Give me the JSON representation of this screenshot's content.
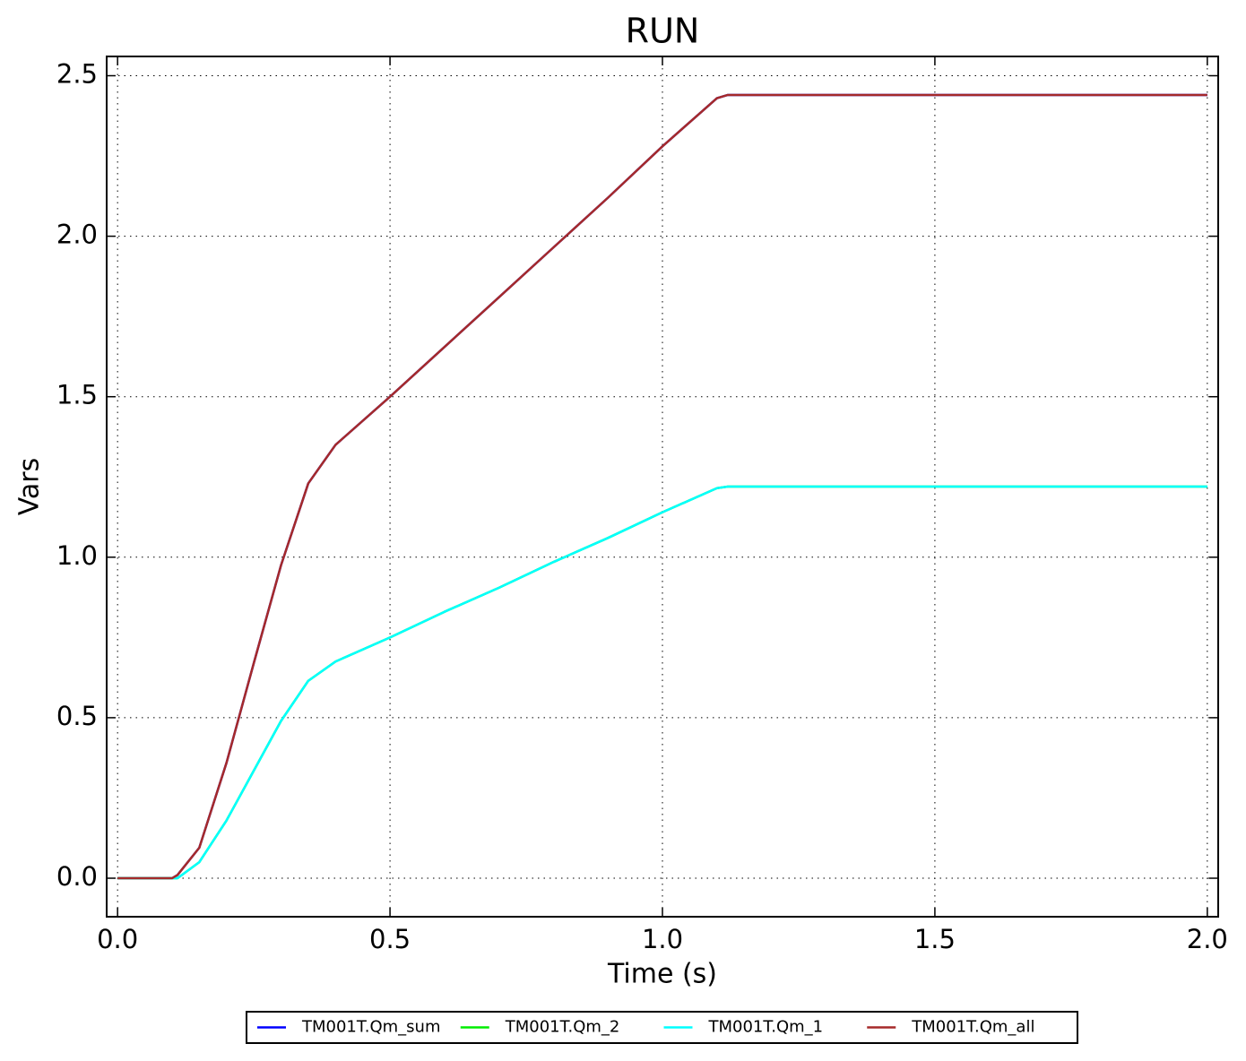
{
  "chart_data": {
    "type": "line",
    "title": "RUN",
    "xlabel": "Time (s)",
    "ylabel": "Vars",
    "x": [
      0,
      0.1,
      0.11,
      0.15,
      0.2,
      0.25,
      0.3,
      0.35,
      0.4,
      0.5,
      0.6,
      0.7,
      0.8,
      0.9,
      1.0,
      1.1,
      1.12,
      1.2,
      1.5,
      2.0
    ],
    "series": [
      {
        "name": "TM001T.Qm_sum",
        "color": "#0000ff",
        "values": [
          0,
          0,
          0.01,
          0.095,
          0.36,
          0.67,
          0.975,
          1.23,
          1.35,
          1.5,
          1.655,
          1.81,
          1.965,
          2.12,
          2.28,
          2.43,
          2.44,
          2.44,
          2.44,
          2.44
        ]
      },
      {
        "name": "TM001T.Qm_2",
        "color": "#00ee00",
        "values": [
          0,
          0,
          0.0,
          0.05,
          0.18,
          0.335,
          0.49,
          0.615,
          0.675,
          0.75,
          0.83,
          0.905,
          0.985,
          1.06,
          1.14,
          1.215,
          1.22,
          1.22,
          1.22,
          1.22
        ]
      },
      {
        "name": "TM001T.Qm_1",
        "color": "#00ffff",
        "values": [
          0,
          0,
          0.0,
          0.05,
          0.18,
          0.335,
          0.49,
          0.615,
          0.675,
          0.75,
          0.83,
          0.905,
          0.985,
          1.06,
          1.14,
          1.215,
          1.22,
          1.22,
          1.22,
          1.22
        ]
      },
      {
        "name": "TM001T.Qm_all",
        "color": "#a52a2a",
        "values": [
          0,
          0,
          0.01,
          0.095,
          0.36,
          0.67,
          0.975,
          1.23,
          1.35,
          1.5,
          1.655,
          1.81,
          1.965,
          2.12,
          2.28,
          2.43,
          2.44,
          2.44,
          2.44,
          2.44
        ]
      }
    ],
    "xlim": [
      -0.02,
      2.02
    ],
    "xticks": [
      {
        "value": 0,
        "label": "0.0"
      },
      0.5,
      {
        "value": 1,
        "label": "1.0"
      },
      1.5,
      {
        "value": 2,
        "label": "2.0"
      }
    ],
    "ylim": [
      -0.12,
      2.56
    ],
    "yticks": [
      {
        "value": 0,
        "label": "0.0"
      },
      0.5,
      {
        "value": 1,
        "label": "1.0"
      },
      1.5,
      {
        "value": 2,
        "label": "2.0"
      },
      2.5
    ],
    "grid": true,
    "legend": "bottom"
  }
}
